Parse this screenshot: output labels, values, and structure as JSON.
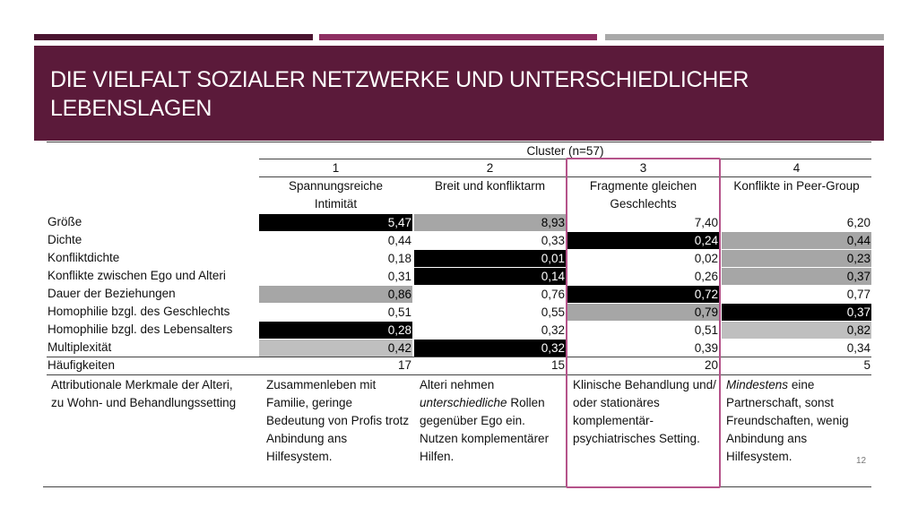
{
  "title": "Die Vielfalt sozialer Netzwerke und unterschiedlicher Lebenslagen",
  "cluster_header": "Cluster (n=57)",
  "clusters": [
    {
      "num": "1",
      "name": "Spannungsreiche Intimität"
    },
    {
      "num": "2",
      "name": "Breit und konfliktarm"
    },
    {
      "num": "3",
      "name": "Fragmente gleichen Geschlechts"
    },
    {
      "num": "4",
      "name": "Konflikte in Peer-Group"
    }
  ],
  "rows": [
    {
      "label": "Größe",
      "values": [
        "5,47",
        "8,93",
        "7,40",
        "6,20"
      ],
      "shade": [
        "black",
        "gray",
        "",
        ""
      ]
    },
    {
      "label": "Dichte",
      "values": [
        "0,44",
        "0,33",
        "0,24",
        "0,44"
      ],
      "shade": [
        "",
        "",
        "black",
        "gray"
      ]
    },
    {
      "label": "Konfliktdichte",
      "values": [
        "0,18",
        "0,01",
        "0,02",
        "0,23"
      ],
      "shade": [
        "",
        "black",
        "",
        "gray"
      ]
    },
    {
      "label": "Konflikte zwischen Ego und Alteri",
      "values": [
        "0,31",
        "0,14",
        "0,26",
        "0,37"
      ],
      "shade": [
        "",
        "black",
        "",
        "gray"
      ]
    },
    {
      "label": "Dauer der Beziehungen",
      "values": [
        "0,86",
        "0,76",
        "0,72",
        "0,77"
      ],
      "shade": [
        "gray",
        "",
        "black",
        ""
      ]
    },
    {
      "label": "Homophilie bzgl. des Geschlechts",
      "values": [
        "0,51",
        "0,55",
        "0,79",
        "0,37"
      ],
      "shade": [
        "",
        "",
        "gray",
        "black"
      ]
    },
    {
      "label": "Homophilie bzgl. des Lebensalters",
      "values": [
        "0,28",
        "0,32",
        "0,51",
        "0,82"
      ],
      "shade": [
        "black",
        "",
        "",
        "light"
      ]
    },
    {
      "label": "Multiplexität",
      "values": [
        "0,42",
        "0,32",
        "0,39",
        "0,34"
      ],
      "shade": [
        "light",
        "black",
        "",
        ""
      ]
    }
  ],
  "frequency": {
    "label": "Häufigkeiten",
    "values": [
      "17",
      "15",
      "20",
      "5"
    ]
  },
  "attributes": {
    "label": "Attributionale Merkmale der Alteri, zu Wohn- und Behandlungssetting",
    "c1": "Zusammenleben mit Familie, geringe Bedeutung von Profis trotz Anbindung ans Hilfesystem.",
    "c2_pre": "Alteri nehmen",
    "c2_em": "unterschiedliche",
    "c2_post": "Rollen gegenüber Ego ein. Nutzen komplementärer Hilfen.",
    "c3": "Klinische Behandlung und/ oder stationäres komplementär-psychiatrisches Setting.",
    "c4_em": "Mindestens",
    "c4_post": "eine Partnerschaft, sonst Freundschaften, wenig Anbindung ans Hilfesystem."
  },
  "page_number": "12",
  "colors": {
    "header_bg": "#5b1a3a",
    "bar1": "#4a1430",
    "bar2": "#8e2f62",
    "bar3": "#a9a9a9",
    "highlight": "#b5538a"
  }
}
